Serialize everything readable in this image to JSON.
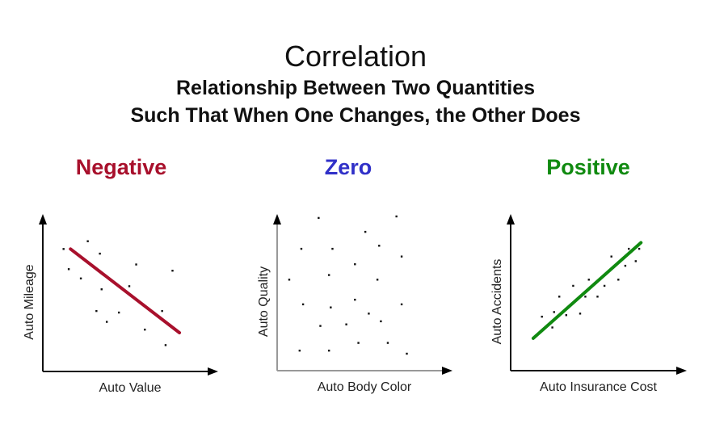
{
  "title": "Correlation",
  "subtitle_lines": [
    "Relationship Between Two Quantities",
    "Such That When One Changes, the Other Does"
  ],
  "chart_data": [
    {
      "type": "scatter",
      "title": "Negative",
      "title_color": "#a8102c",
      "xlabel": "Auto Value",
      "ylabel": "Auto Mileage",
      "xlim": [
        0,
        100
      ],
      "ylim": [
        0,
        100
      ],
      "grid": false,
      "points": [
        [
          12,
          79
        ],
        [
          26,
          84
        ],
        [
          33,
          76
        ],
        [
          15,
          66
        ],
        [
          22,
          60
        ],
        [
          34,
          53
        ],
        [
          54,
          69
        ],
        [
          75,
          65
        ],
        [
          50,
          55
        ],
        [
          31,
          39
        ],
        [
          44,
          38
        ],
        [
          37,
          32
        ],
        [
          69,
          39
        ],
        [
          59,
          27
        ],
        [
          71,
          17
        ]
      ],
      "trend_line": {
        "from": [
          16,
          79
        ],
        "to": [
          79,
          25
        ],
        "color": "#a8102c"
      }
    },
    {
      "type": "scatter",
      "title": "Zero",
      "title_color": "#3030c8",
      "xlabel": "Auto Body Color",
      "ylabel": "Auto Quality",
      "xlim": [
        0,
        100
      ],
      "ylim": [
        0,
        100
      ],
      "grid": false,
      "points": [
        [
          24,
          99
        ],
        [
          69,
          100
        ],
        [
          51,
          90
        ],
        [
          14,
          79
        ],
        [
          32,
          79
        ],
        [
          59,
          81
        ],
        [
          72,
          74
        ],
        [
          45,
          69
        ],
        [
          30,
          62
        ],
        [
          58,
          59
        ],
        [
          7,
          59
        ],
        [
          15,
          43
        ],
        [
          31,
          41
        ],
        [
          45,
          46
        ],
        [
          72,
          43
        ],
        [
          53,
          37
        ],
        [
          60,
          32
        ],
        [
          25,
          29
        ],
        [
          40,
          30
        ],
        [
          47,
          18
        ],
        [
          64,
          18
        ],
        [
          13,
          13
        ],
        [
          30,
          13
        ],
        [
          75,
          11
        ]
      ]
    },
    {
      "type": "scatter",
      "title": "Positive",
      "title_color": "#108a10",
      "xlabel": "Auto Insurance Cost",
      "ylabel": "Auto Accidents",
      "xlim": [
        0,
        100
      ],
      "ylim": [
        0,
        100
      ],
      "grid": false,
      "points": [
        [
          18,
          35
        ],
        [
          25,
          38
        ],
        [
          28,
          48
        ],
        [
          36,
          55
        ],
        [
          40,
          37
        ],
        [
          43,
          48
        ],
        [
          45,
          59
        ],
        [
          50,
          48
        ],
        [
          54,
          55
        ],
        [
          58,
          74
        ],
        [
          62,
          59
        ],
        [
          66,
          68
        ],
        [
          68,
          79
        ],
        [
          72,
          71
        ],
        [
          74,
          79
        ],
        [
          24,
          28
        ],
        [
          32,
          36
        ]
      ],
      "trend_line": {
        "from": [
          13,
          21
        ],
        "to": [
          75,
          83
        ],
        "color": "#108a10"
      }
    }
  ]
}
